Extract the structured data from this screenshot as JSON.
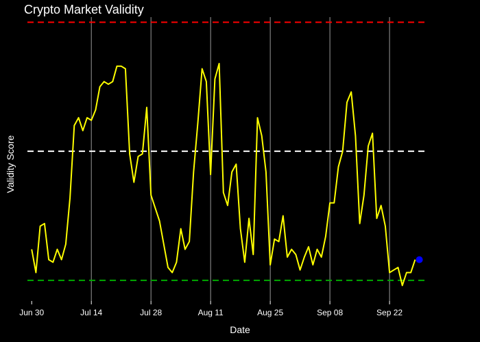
{
  "chart_data": {
    "type": "line",
    "title": "Crypto Market Validity",
    "xlabel": "Date",
    "ylabel": "Validity Score",
    "x_start": "2024-06-30",
    "x_end": "2024-09-29",
    "xlim": [
      "2024-06-29",
      "2024-10-01"
    ],
    "ylim": [
      -0.08,
      1.02
    ],
    "x_tick_labels": [
      {
        "date": "2024-06-30",
        "label": "Jun 30"
      },
      {
        "date": "2024-07-14",
        "label": "Jul 14"
      },
      {
        "date": "2024-07-28",
        "label": "Jul 28"
      },
      {
        "date": "2024-08-11",
        "label": "Aug 11"
      },
      {
        "date": "2024-08-25",
        "label": "Aug 25"
      },
      {
        "date": "2024-09-08",
        "label": "Sep 08"
      },
      {
        "date": "2024-09-22",
        "label": "Sep 22"
      }
    ],
    "reference_lines": [
      {
        "value": 1.0,
        "color": "#ff0000"
      },
      {
        "value": 0.5,
        "color": "#ffffff"
      },
      {
        "value": 0.0,
        "color": "#00aa00"
      }
    ],
    "series": [
      {
        "color": "#ffff00",
        "values": [
          0.12,
          0.03,
          0.21,
          0.22,
          0.08,
          0.07,
          0.12,
          0.08,
          0.14,
          0.32,
          0.6,
          0.63,
          0.58,
          0.63,
          0.62,
          0.66,
          0.75,
          0.77,
          0.76,
          0.77,
          0.83,
          0.83,
          0.82,
          0.49,
          0.38,
          0.48,
          0.49,
          0.67,
          0.33,
          0.28,
          0.23,
          0.14,
          0.05,
          0.03,
          0.07,
          0.2,
          0.12,
          0.15,
          0.42,
          0.61,
          0.82,
          0.77,
          0.41,
          0.78,
          0.84,
          0.34,
          0.29,
          0.42,
          0.45,
          0.2,
          0.07,
          0.24,
          0.1,
          0.63,
          0.56,
          0.42,
          0.06,
          0.16,
          0.15,
          0.25,
          0.09,
          0.12,
          0.1,
          0.04,
          0.09,
          0.13,
          0.06,
          0.12,
          0.09,
          0.17,
          0.3,
          0.3,
          0.44,
          0.5,
          0.69,
          0.73,
          0.56,
          0.22,
          0.33,
          0.52,
          0.57,
          0.24,
          0.29,
          0.21,
          0.03,
          0.04,
          0.05,
          -0.02,
          0.03,
          0.03,
          0.08
        ]
      }
    ],
    "highlight_point": {
      "date": "2024-09-29",
      "value": 0.08,
      "color": "#0000ff"
    },
    "gridlines": "vertical"
  }
}
